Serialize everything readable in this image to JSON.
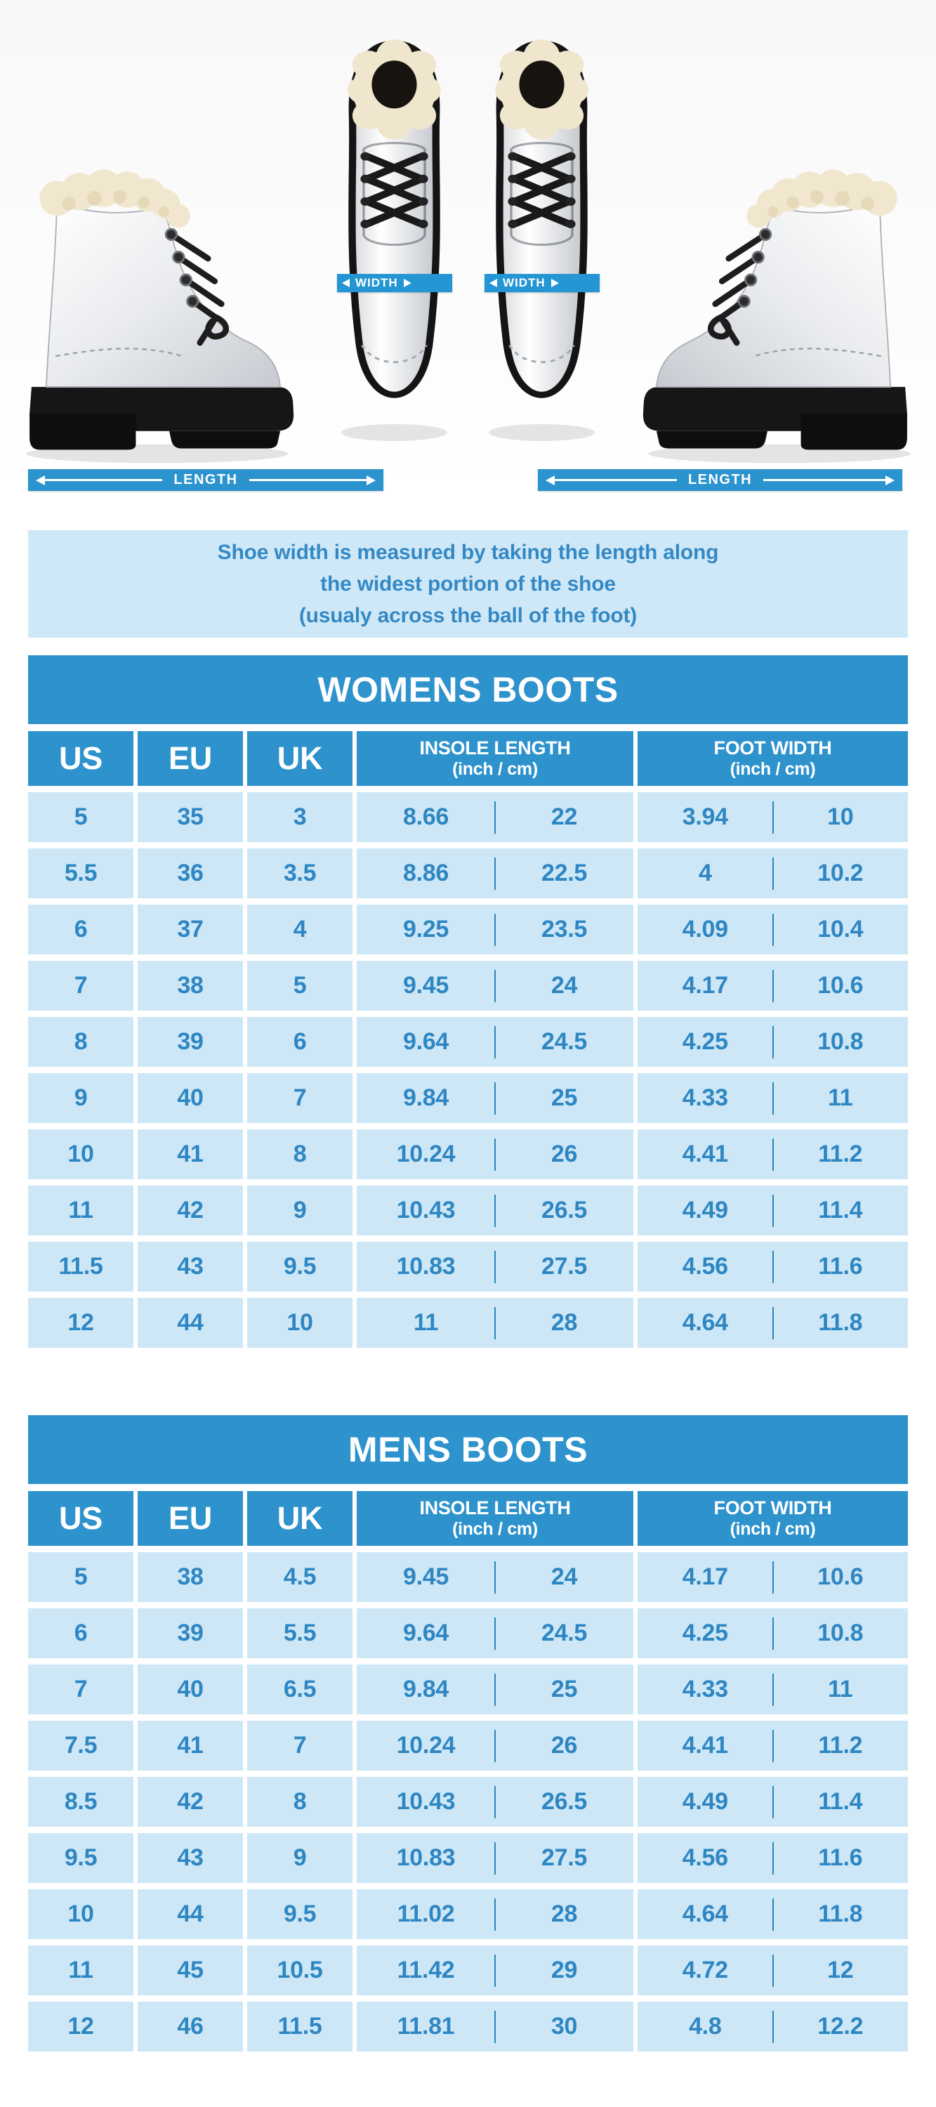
{
  "measure_diagram": {
    "width_label": "WIDTH",
    "length_label": "LENGTH"
  },
  "info_box": {
    "line1": "Shoe width is measured by taking the length along",
    "line2": "the widest portion of the shoe",
    "line3": "(usualy across the ball of the foot)"
  },
  "table_header": {
    "us": "US",
    "eu": "EU",
    "uk": "UK",
    "insole_title": "INSOLE LENGTH",
    "insole_sub": "(inch / cm)",
    "foot_title": "FOOT WIDTH",
    "foot_sub": "(inch / cm)"
  },
  "chart_data": [
    {
      "type": "table",
      "title": "WOMENS BOOTS",
      "columns": [
        "US",
        "EU",
        "UK",
        "INSOLE LENGTH (inch)",
        "INSOLE LENGTH (cm)",
        "FOOT WIDTH (inch)",
        "FOOT WIDTH (cm)"
      ],
      "rows": [
        [
          "5",
          "35",
          "3",
          "8.66",
          "22",
          "3.94",
          "10"
        ],
        [
          "5.5",
          "36",
          "3.5",
          "8.86",
          "22.5",
          "4",
          "10.2"
        ],
        [
          "6",
          "37",
          "4",
          "9.25",
          "23.5",
          "4.09",
          "10.4"
        ],
        [
          "7",
          "38",
          "5",
          "9.45",
          "24",
          "4.17",
          "10.6"
        ],
        [
          "8",
          "39",
          "6",
          "9.64",
          "24.5",
          "4.25",
          "10.8"
        ],
        [
          "9",
          "40",
          "7",
          "9.84",
          "25",
          "4.33",
          "11"
        ],
        [
          "10",
          "41",
          "8",
          "10.24",
          "26",
          "4.41",
          "11.2"
        ],
        [
          "11",
          "42",
          "9",
          "10.43",
          "26.5",
          "4.49",
          "11.4"
        ],
        [
          "11.5",
          "43",
          "9.5",
          "10.83",
          "27.5",
          "4.56",
          "11.6"
        ],
        [
          "12",
          "44",
          "10",
          "11",
          "28",
          "4.64",
          "11.8"
        ]
      ]
    },
    {
      "type": "table",
      "title": "MENS BOOTS",
      "columns": [
        "US",
        "EU",
        "UK",
        "INSOLE LENGTH (inch)",
        "INSOLE LENGTH (cm)",
        "FOOT WIDTH (inch)",
        "FOOT WIDTH (cm)"
      ],
      "rows": [
        [
          "5",
          "38",
          "4.5",
          "9.45",
          "24",
          "4.17",
          "10.6"
        ],
        [
          "6",
          "39",
          "5.5",
          "9.64",
          "24.5",
          "4.25",
          "10.8"
        ],
        [
          "7",
          "40",
          "6.5",
          "9.84",
          "25",
          "4.33",
          "11"
        ],
        [
          "7.5",
          "41",
          "7",
          "10.24",
          "26",
          "4.41",
          "11.2"
        ],
        [
          "8.5",
          "42",
          "8",
          "10.43",
          "26.5",
          "4.49",
          "11.4"
        ],
        [
          "9.5",
          "43",
          "9",
          "10.83",
          "27.5",
          "4.56",
          "11.6"
        ],
        [
          "10",
          "44",
          "9.5",
          "11.02",
          "28",
          "4.64",
          "11.8"
        ],
        [
          "11",
          "45",
          "10.5",
          "11.42",
          "29",
          "4.72",
          "12"
        ],
        [
          "12",
          "46",
          "11.5",
          "11.81",
          "30",
          "4.8",
          "12.2"
        ]
      ]
    }
  ],
  "colors": {
    "header_blue": "#2e93cc",
    "band_blue": "#2496d3",
    "cell_background": "#cde7f7",
    "cell_text": "#2e86c2",
    "info_background": "#cfe8f8",
    "info_text": "#3489c4"
  }
}
